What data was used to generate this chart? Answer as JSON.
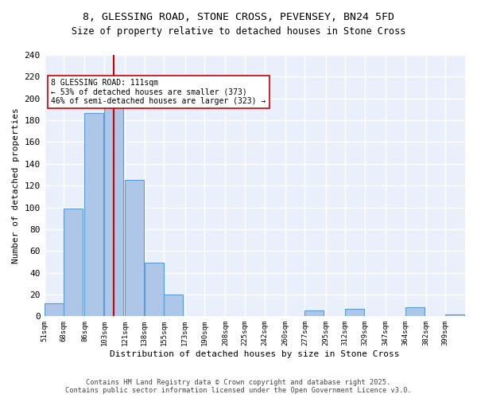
{
  "title_line1": "8, GLESSING ROAD, STONE CROSS, PEVENSEY, BN24 5FD",
  "title_line2": "Size of property relative to detached houses in Stone Cross",
  "xlabel": "Distribution of detached houses by size in Stone Cross",
  "ylabel": "Number of detached properties",
  "bins": [
    51,
    68,
    86,
    103,
    121,
    138,
    155,
    173,
    190,
    208,
    225,
    242,
    260,
    277,
    295,
    312,
    329,
    347,
    364,
    382,
    399
  ],
  "counts": [
    12,
    99,
    187,
    200,
    125,
    49,
    20,
    0,
    0,
    0,
    0,
    0,
    0,
    5,
    0,
    7,
    0,
    0,
    8,
    0,
    2
  ],
  "bar_color": "#aec6e8",
  "bar_edge_color": "#5b9bd5",
  "property_size": 111,
  "red_line_color": "#cc0000",
  "annotation_text": "8 GLESSING ROAD: 111sqm\n← 53% of detached houses are smaller (373)\n46% of semi-detached houses are larger (323) →",
  "annotation_box_color": "#ffffff",
  "annotation_box_edge": "#cc0000",
  "footer_line1": "Contains HM Land Registry data © Crown copyright and database right 2025.",
  "footer_line2": "Contains public sector information licensed under the Open Government Licence v3.0.",
  "bg_color": "#eaf0fb",
  "grid_color": "#ffffff",
  "ylim": [
    0,
    240
  ],
  "yticks": [
    0,
    20,
    40,
    60,
    80,
    100,
    120,
    140,
    160,
    180,
    200,
    220,
    240
  ]
}
